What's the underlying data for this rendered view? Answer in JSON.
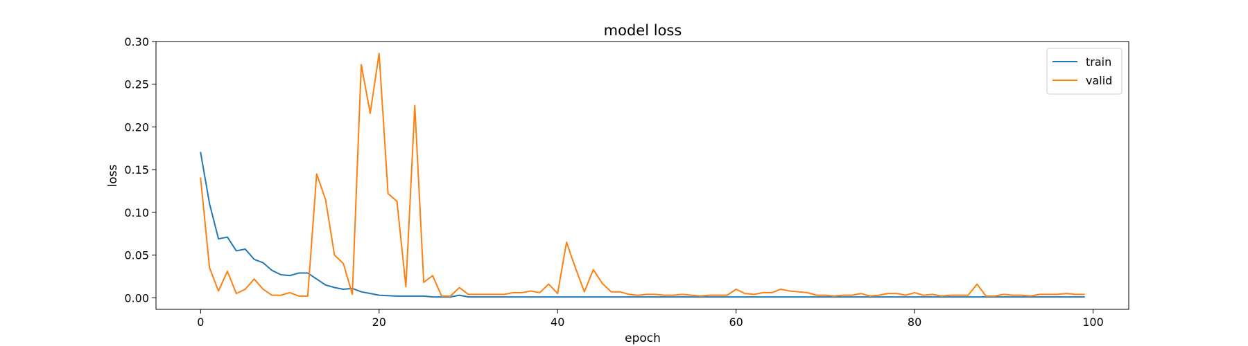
{
  "chart_data": {
    "type": "line",
    "title": "model loss",
    "xlabel": "epoch",
    "ylabel": "loss",
    "xlim": [
      -5,
      104
    ],
    "ylim": [
      -0.0135,
      0.3
    ],
    "xticks": [
      0,
      20,
      40,
      60,
      80,
      100
    ],
    "xtick_labels": [
      "0",
      "20",
      "40",
      "60",
      "80",
      "100"
    ],
    "yticks": [
      0.0,
      0.05,
      0.1,
      0.15,
      0.2,
      0.25,
      0.3
    ],
    "ytick_labels": [
      "0.00",
      "0.05",
      "0.10",
      "0.15",
      "0.20",
      "0.25",
      "0.30"
    ],
    "grid": false,
    "legend_position": "upper right",
    "series": [
      {
        "name": "train",
        "color": "#1f77b4",
        "values": [
          0.17,
          0.11,
          0.069,
          0.071,
          0.055,
          0.057,
          0.045,
          0.041,
          0.032,
          0.027,
          0.026,
          0.029,
          0.029,
          0.022,
          0.015,
          0.012,
          0.01,
          0.011,
          0.007,
          0.005,
          0.003,
          0.0025,
          0.002,
          0.002,
          0.002,
          0.002,
          0.001,
          0.001,
          0.001,
          0.003,
          0.001,
          0.001,
          0.001,
          0.001,
          0.001,
          0.001,
          0.001,
          0.001,
          0.001,
          0.001,
          0.001,
          0.001,
          0.001,
          0.001,
          0.001,
          0.001,
          0.001,
          0.001,
          0.001,
          0.001,
          0.001,
          0.001,
          0.001,
          0.001,
          0.001,
          0.001,
          0.001,
          0.001,
          0.001,
          0.001,
          0.001,
          0.001,
          0.001,
          0.001,
          0.001,
          0.001,
          0.001,
          0.001,
          0.001,
          0.001,
          0.001,
          0.001,
          0.001,
          0.001,
          0.001,
          0.001,
          0.001,
          0.001,
          0.001,
          0.001,
          0.001,
          0.001,
          0.001,
          0.001,
          0.001,
          0.001,
          0.001,
          0.001,
          0.001,
          0.001,
          0.001,
          0.001,
          0.001,
          0.001,
          0.001,
          0.001,
          0.001,
          0.001,
          0.001,
          0.001
        ]
      },
      {
        "name": "valid",
        "color": "#ff7f0e",
        "values": [
          0.14,
          0.035,
          0.008,
          0.031,
          0.005,
          0.01,
          0.022,
          0.01,
          0.003,
          0.003,
          0.006,
          0.002,
          0.002,
          0.145,
          0.115,
          0.05,
          0.04,
          0.004,
          0.273,
          0.216,
          0.286,
          0.122,
          0.113,
          0.013,
          0.225,
          0.018,
          0.026,
          0.002,
          0.002,
          0.012,
          0.004,
          0.004,
          0.004,
          0.004,
          0.004,
          0.006,
          0.006,
          0.008,
          0.006,
          0.016,
          0.005,
          0.065,
          0.035,
          0.007,
          0.033,
          0.017,
          0.007,
          0.007,
          0.004,
          0.003,
          0.004,
          0.004,
          0.003,
          0.003,
          0.004,
          0.003,
          0.002,
          0.003,
          0.003,
          0.003,
          0.01,
          0.005,
          0.004,
          0.006,
          0.006,
          0.01,
          0.008,
          0.007,
          0.006,
          0.003,
          0.003,
          0.002,
          0.003,
          0.003,
          0.005,
          0.002,
          0.003,
          0.005,
          0.005,
          0.003,
          0.006,
          0.003,
          0.004,
          0.002,
          0.003,
          0.003,
          0.003,
          0.016,
          0.002,
          0.002,
          0.004,
          0.003,
          0.003,
          0.002,
          0.004,
          0.004,
          0.004,
          0.005,
          0.004,
          0.004
        ]
      }
    ]
  }
}
